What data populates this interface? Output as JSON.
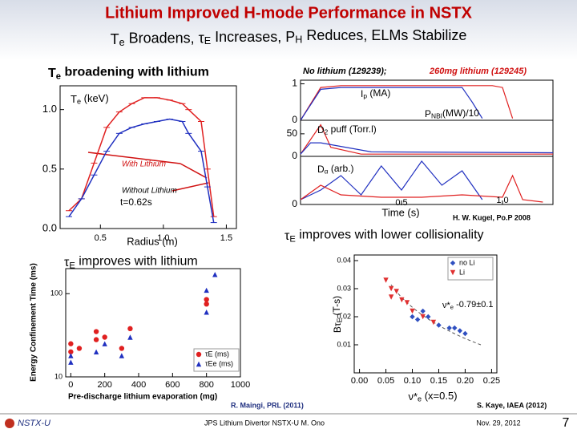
{
  "header": {
    "title": "Lithium Improved H-mode Performance in NSTX",
    "subtitle": [
      "T",
      "e",
      " Broadens, τ",
      "E",
      " Increases, P",
      "H",
      " Reduces, ELMs Stabilize"
    ]
  },
  "chart_data": [
    {
      "type": "line",
      "title": [
        "T",
        "e",
        " broadening with lithium"
      ],
      "inner_label": [
        "T",
        "e",
        " (keV)"
      ],
      "annotations": [
        "With Lithium",
        "Without Lithium",
        "t=0.62s"
      ],
      "xlabel": "Radius (m)",
      "xlim": [
        0.18,
        1.58
      ],
      "ylim": [
        0,
        1.2
      ],
      "xticks": [
        0.5,
        {
          "value": 1,
          "label": "1.0"
        },
        1.5
      ],
      "yticks": [
        {
          "value": 0,
          "label": "0.0"
        },
        0.5,
        {
          "value": 1,
          "label": "1.0"
        }
      ],
      "series": [
        {
          "name": "With Lithium",
          "color": "#e02020",
          "x": [
            0.25,
            0.35,
            0.45,
            0.55,
            0.65,
            0.75,
            0.85,
            0.95,
            1.05,
            1.15,
            1.2,
            1.3,
            1.35,
            1.4
          ],
          "values": [
            0.15,
            0.25,
            0.55,
            0.85,
            0.98,
            1.05,
            1.1,
            1.1,
            1.08,
            1.05,
            1.0,
            0.9,
            0.5,
            0.1
          ]
        },
        {
          "name": "Without Lithium",
          "color": "#2030c0",
          "x": [
            0.25,
            0.35,
            0.45,
            0.55,
            0.65,
            0.75,
            0.85,
            0.95,
            1.05,
            1.15,
            1.2,
            1.3,
            1.35,
            1.4
          ],
          "values": [
            0.1,
            0.25,
            0.45,
            0.65,
            0.8,
            0.85,
            0.88,
            0.9,
            0.92,
            0.9,
            0.8,
            0.65,
            0.35,
            0.05
          ]
        }
      ]
    },
    {
      "type": "line",
      "title": "No lithium (129239);",
      "title2": "260mg lithium (129245)",
      "xlabel": "Time (s)",
      "credit": "H. W. Kugel, Po.P 2008",
      "xlim": [
        0,
        1.25
      ],
      "xticks": [
        0.5,
        {
          "value": 1,
          "label": "1.0"
        }
      ],
      "panels": [
        {
          "labels": [
            [
              "I",
              "p",
              " (MA)"
            ],
            [
              "P",
              "NBI",
              "(MW)/10"
            ]
          ],
          "ylim": [
            0,
            1.1
          ],
          "yticks": [
            0,
            1
          ],
          "series": [
            {
              "name": "129245",
              "color": "#e02020",
              "x": [
                0,
                0.1,
                0.2,
                0.95,
                1.0,
                1.05
              ],
              "values": [
                0,
                0.9,
                0.95,
                0.95,
                0.9,
                0.05
              ]
            },
            {
              "name": "129239",
              "color": "#2030c0",
              "x": [
                0,
                0.1,
                0.2,
                0.8,
                0.85,
                0.9
              ],
              "values": [
                0,
                0.85,
                0.9,
                0.9,
                0.5,
                0.05
              ]
            }
          ]
        },
        {
          "labels": [
            [
              "D",
              "2",
              " puff (Torr.l)"
            ]
          ],
          "ylim": [
            0,
            80
          ],
          "yticks": [
            0,
            50
          ],
          "series": [
            {
              "name": "129245",
              "color": "#e02020",
              "x": [
                0,
                0.1,
                0.15,
                0.3,
                1.25
              ],
              "values": [
                5,
                70,
                20,
                5,
                5
              ]
            },
            {
              "name": "129239",
              "color": "#2030c0",
              "x": [
                0,
                0.05,
                0.1,
                0.35,
                1.25
              ],
              "values": [
                5,
                30,
                30,
                10,
                8
              ]
            }
          ]
        },
        {
          "labels": [
            [
              "D",
              "α",
              " (arb.)"
            ]
          ],
          "ylim": [
            0,
            1
          ],
          "yticks": [
            0
          ],
          "series": [
            {
              "name": "129239",
              "color": "#2030c0",
              "x": [
                0,
                0.1,
                0.2,
                0.3,
                0.4,
                0.5,
                0.6,
                0.7,
                0.8,
                0.9
              ],
              "values": [
                0.1,
                0.3,
                0.6,
                0.2,
                0.8,
                0.3,
                0.9,
                0.4,
                0.7,
                0.1
              ]
            },
            {
              "name": "129245",
              "color": "#e02020",
              "x": [
                0,
                0.1,
                0.2,
                0.4,
                0.6,
                0.8,
                1.0,
                1.05,
                1.1,
                1.2
              ],
              "values": [
                0.1,
                0.4,
                0.2,
                0.15,
                0.15,
                0.2,
                0.15,
                0.6,
                0.1,
                0.05
              ]
            }
          ]
        }
      ]
    },
    {
      "type": "scatter",
      "title": [
        "τ",
        "E",
        " improves with lithium"
      ],
      "xlabel": "Pre-discharge lithium evaporation (mg)",
      "ylabel": "Energy Confinement Time (ms)",
      "credit": "R. Maingi, PRL (2011)",
      "xlim": [
        -30,
        1000
      ],
      "ylim": [
        10,
        200
      ],
      "log_y": true,
      "xticks": [
        0,
        200,
        400,
        600,
        800,
        1000
      ],
      "yticks": [
        10,
        100
      ],
      "legend": "lower right",
      "series": [
        {
          "name": "τE (ms)",
          "color": "#e02020",
          "marker": "circle",
          "x": [
            0,
            0,
            50,
            150,
            150,
            200,
            300,
            350,
            800,
            800
          ],
          "values": [
            20,
            25,
            22,
            28,
            35,
            30,
            22,
            38,
            85,
            75
          ]
        },
        {
          "name": "τEe (ms)",
          "color": "#2030c0",
          "marker": "triangle",
          "x": [
            0,
            0,
            150,
            200,
            300,
            350,
            800,
            800,
            850
          ],
          "values": [
            15,
            18,
            20,
            25,
            18,
            30,
            110,
            60,
            170
          ]
        }
      ]
    },
    {
      "type": "scatter",
      "title": [
        "τ",
        "E",
        " improves with lower collisionality"
      ],
      "xlabel": [
        "ν*",
        "e",
        " (x=0.5)"
      ],
      "ylabel": [
        "Bτ",
        "E",
        " (T-s)"
      ],
      "fit_label": [
        "ν*",
        "e",
        " -0.79±0.1"
      ],
      "credit": "S. Kaye, IAEA (2012)",
      "xlim": [
        -0.01,
        0.26
      ],
      "ylim": [
        0,
        0.042
      ],
      "legend": "upper right",
      "xticks": [
        {
          "value": 0,
          "label": "0.00"
        },
        0.05,
        {
          "value": 0.1,
          "label": "0.10"
        },
        0.15,
        {
          "value": 0.2,
          "label": "0.20"
        },
        0.25
      ],
      "yticks": [
        0.01,
        0.02,
        0.03,
        0.04
      ],
      "series": [
        {
          "name": "no Li",
          "color": "#3050c0",
          "marker": "diamond",
          "x": [
            0.1,
            0.12,
            0.15,
            0.17,
            0.18,
            0.19,
            0.2,
            0.11,
            0.13
          ],
          "values": [
            0.02,
            0.022,
            0.017,
            0.016,
            0.016,
            0.015,
            0.014,
            0.019,
            0.02
          ]
        },
        {
          "name": "Li",
          "color": "#e03030",
          "marker": "triangle-down",
          "x": [
            0.05,
            0.06,
            0.07,
            0.08,
            0.09,
            0.1,
            0.12,
            0.14,
            0.06
          ],
          "values": [
            0.033,
            0.03,
            0.029,
            0.026,
            0.025,
            0.022,
            0.02,
            0.018,
            0.027
          ]
        }
      ]
    }
  ],
  "footer": {
    "logo": "NSTX-U",
    "center": "JPS Lithium Divertor NSTX-U M. Ono",
    "date": "Nov. 29, 2012",
    "page": "7"
  }
}
